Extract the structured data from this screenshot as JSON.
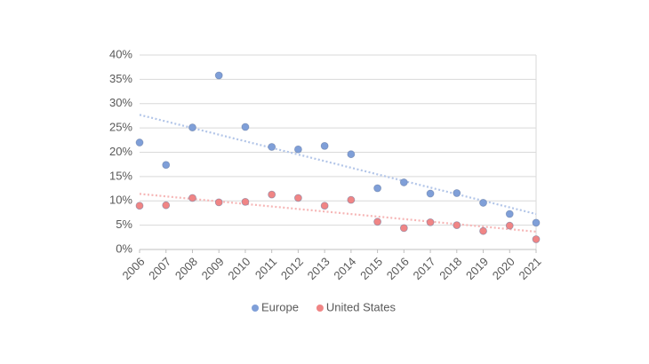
{
  "chart_data": {
    "type": "scatter",
    "x": [
      2006,
      2007,
      2008,
      2009,
      2010,
      2011,
      2012,
      2013,
      2014,
      2015,
      2016,
      2017,
      2018,
      2019,
      2020,
      2021
    ],
    "series": [
      {
        "name": "Europe",
        "color": "#7f9fd8",
        "values": [
          22.0,
          17.4,
          25.1,
          35.8,
          25.2,
          21.1,
          20.6,
          21.3,
          19.6,
          12.6,
          13.8,
          11.5,
          11.6,
          9.6,
          7.3,
          5.5
        ]
      },
      {
        "name": "United States",
        "color": "#f08585",
        "values": [
          9.0,
          9.1,
          10.6,
          9.7,
          9.8,
          11.3,
          10.6,
          9.0,
          10.2,
          5.7,
          4.4,
          5.6,
          5.0,
          3.8,
          4.9,
          2.1
        ]
      }
    ],
    "xlim": [
      2006,
      2021
    ],
    "xticks": [
      2006,
      2007,
      2008,
      2009,
      2010,
      2011,
      2012,
      2013,
      2014,
      2015,
      2016,
      2017,
      2018,
      2019,
      2020,
      2021
    ],
    "ylim": [
      0,
      40
    ],
    "yticks": [
      {
        "value": 0,
        "label": "0%"
      },
      {
        "value": 5,
        "label": "5%"
      },
      {
        "value": 10,
        "label": "10%"
      },
      {
        "value": 15,
        "label": "15%"
      },
      {
        "value": 20,
        "label": "20%"
      },
      {
        "value": 25,
        "label": "25%"
      },
      {
        "value": 30,
        "label": "30%"
      },
      {
        "value": 35,
        "label": "35%"
      },
      {
        "value": 40,
        "label": "40%"
      }
    ],
    "grid": true,
    "trendline": true,
    "legend": "bottom"
  }
}
